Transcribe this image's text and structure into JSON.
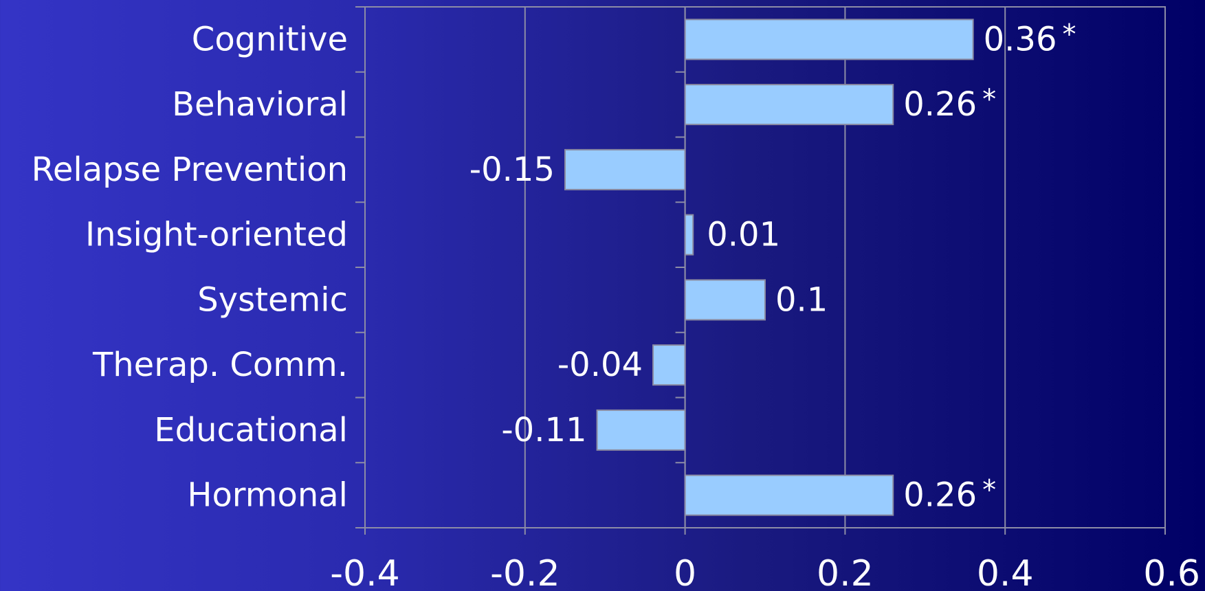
{
  "chart_data": {
    "type": "bar",
    "orientation": "horizontal",
    "title": "",
    "xlabel": "",
    "ylabel": "",
    "categories": [
      "Cognitive",
      "Behavioral",
      "Relapse Prevention",
      "Insight-oriented",
      "Systemic",
      "Therap. Comm.",
      "Educational",
      "Hormonal"
    ],
    "values": [
      0.36,
      0.26,
      -0.15,
      0.01,
      0.1,
      -0.04,
      -0.11,
      0.26
    ],
    "value_labels": [
      "0.36",
      "0.26",
      "-0.15",
      "0.01",
      "0.1",
      "-0.04",
      "-0.11",
      "0.26"
    ],
    "significance_markers": [
      "*",
      "*",
      "",
      "",
      "",
      "",
      "",
      "*"
    ],
    "xlim": [
      -0.4,
      0.6
    ],
    "xticks": [
      -0.4,
      -0.2,
      0,
      0.2,
      0.4,
      0.6
    ],
    "xtick_labels": [
      "-0.4",
      "-0.2",
      "0",
      "0.2",
      "0.4",
      "0.6"
    ],
    "grid": true,
    "legend": "none",
    "colors": {
      "bar_fill": "#99ccff",
      "bar_stroke": "#8a8aa0",
      "grid": "#8c8ca6",
      "text": "#ffffff"
    }
  }
}
